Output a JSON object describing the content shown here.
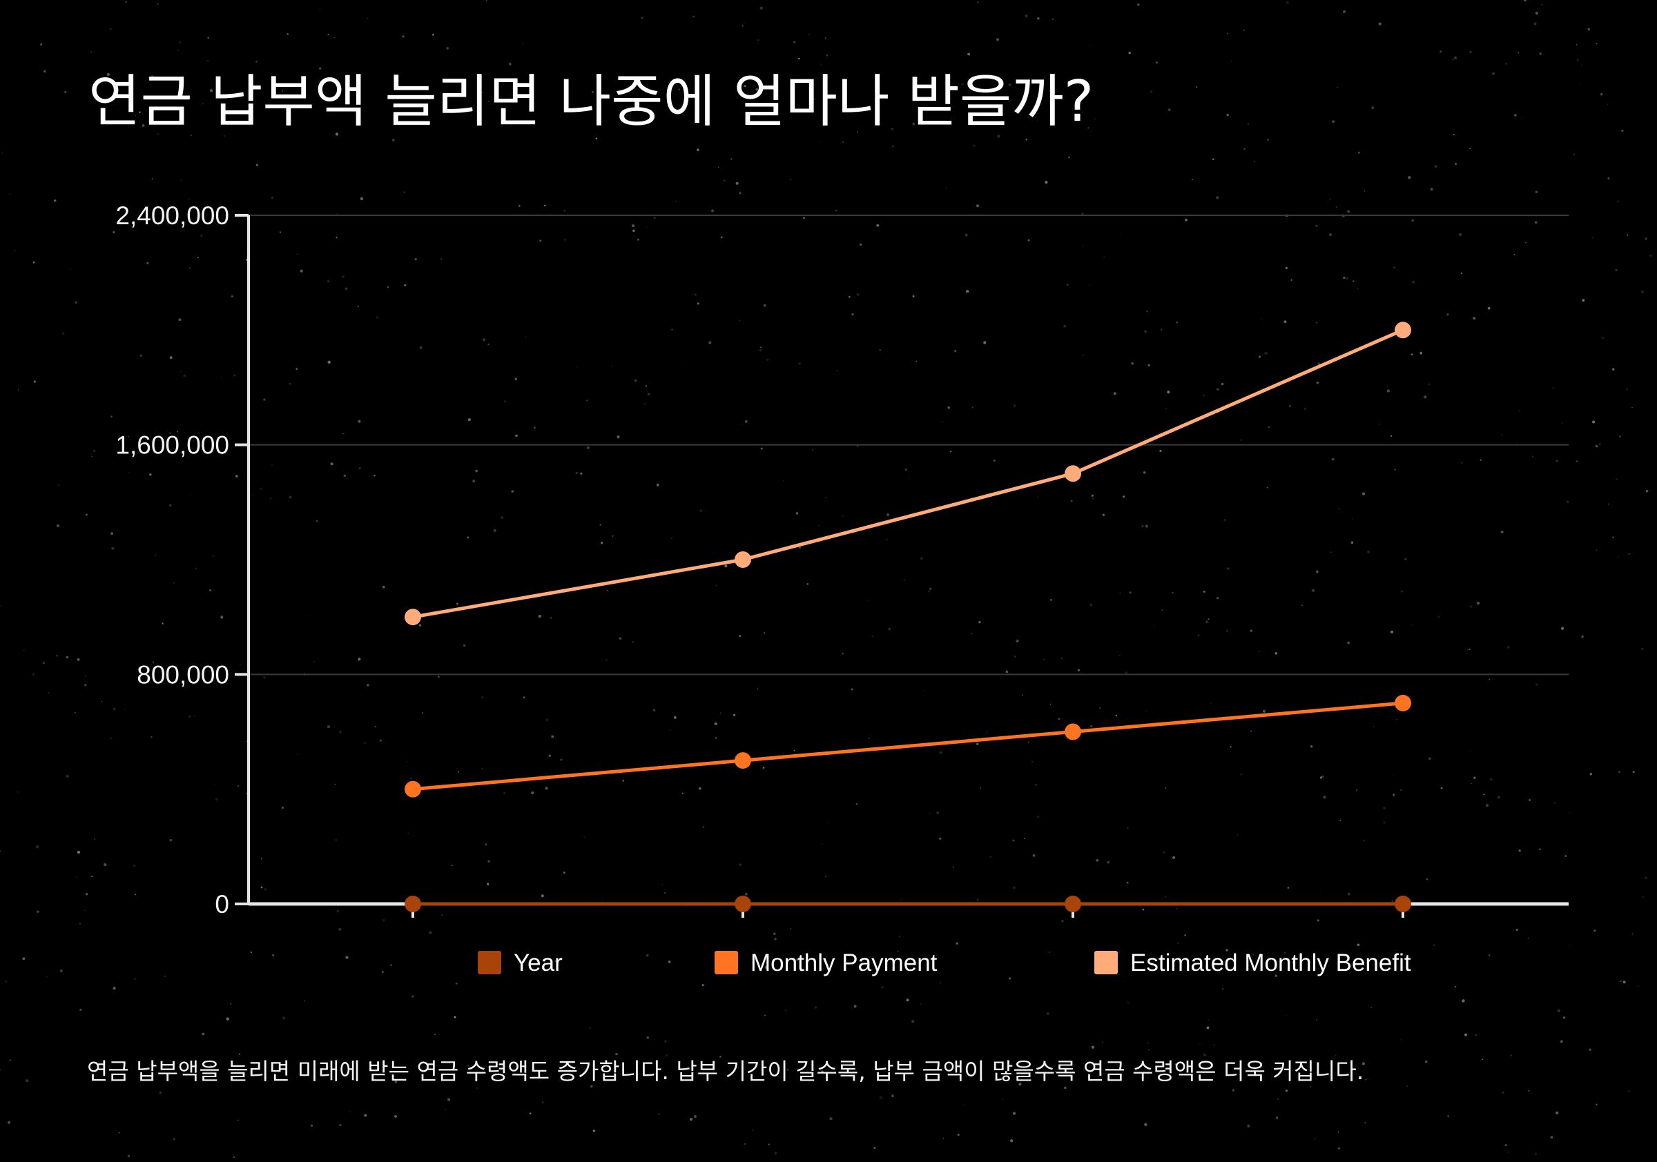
{
  "title": "연금 납부액 늘리면 나중에 얼마나 받을까?",
  "caption": "연금 납부액을 늘리면 미래에 받는 연금 수령액도 증가합니다. 납부 기간이 길수록, 납부 금액이 많을수록 연금 수령액은 더욱 커집니다.",
  "colors": {
    "background": "#000000",
    "grid": "#3a3a3a",
    "axis": "#e6e6e6"
  },
  "chart_data": {
    "type": "line",
    "x_tick_labels": [
      "",
      "",
      "",
      ""
    ],
    "series": [
      {
        "name": "Year",
        "color": "#a8430a",
        "values": [
          0,
          0,
          0,
          0
        ]
      },
      {
        "name": "Monthly Payment",
        "color": "#ff7420",
        "values": [
          400000,
          500000,
          600000,
          700000
        ]
      },
      {
        "name": "Estimated Monthly Benefit",
        "color": "#ffac7a",
        "values": [
          1000000,
          1200000,
          1500000,
          2000000
        ]
      }
    ],
    "yticks": [
      0,
      800000,
      1600000,
      2400000
    ],
    "ytick_labels": [
      "0",
      "800,000",
      "1,600,000",
      "2,400,000"
    ],
    "ylim": [
      0,
      2400000
    ],
    "grid": true,
    "legend_position": "bottom"
  }
}
